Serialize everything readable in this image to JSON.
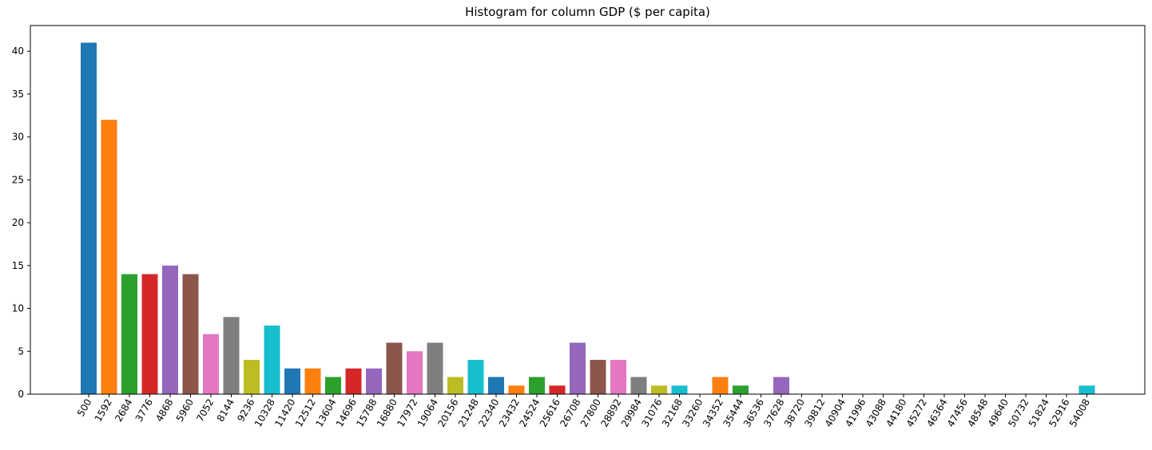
{
  "chart_data": {
    "type": "bar",
    "title": "Histogram for column GDP ($ per capita)",
    "xlabel": "",
    "ylabel": "",
    "ylim": [
      0,
      43
    ],
    "yticks": [
      0,
      5,
      10,
      15,
      20,
      25,
      30,
      35,
      40
    ],
    "grid": false,
    "categories": [
      "500",
      "1592",
      "2684",
      "3776",
      "4868",
      "5960",
      "7052",
      "8144",
      "9236",
      "10328",
      "11420",
      "12512",
      "13604",
      "14696",
      "15788",
      "16880",
      "17972",
      "19064",
      "20156",
      "21248",
      "22340",
      "23432",
      "24524",
      "25616",
      "26708",
      "27800",
      "28892",
      "29984",
      "31076",
      "32168",
      "33260",
      "34352",
      "35444",
      "36536",
      "37628",
      "38720",
      "39812",
      "40904",
      "41996",
      "43088",
      "44180",
      "45272",
      "46364",
      "47456",
      "48548",
      "49640",
      "50732",
      "51824",
      "52916",
      "54008"
    ],
    "values": [
      41,
      32,
      14,
      14,
      15,
      14,
      7,
      9,
      4,
      8,
      3,
      3,
      2,
      3,
      3,
      6,
      5,
      6,
      2,
      4,
      2,
      1,
      2,
      1,
      6,
      4,
      4,
      2,
      1,
      1,
      0,
      2,
      1,
      0,
      2,
      0,
      0,
      0,
      0,
      0,
      0,
      0,
      0,
      0,
      0,
      0,
      0,
      0,
      0,
      1
    ],
    "colors": [
      "#1f77b4",
      "#ff7f0e",
      "#2ca02c",
      "#d62728",
      "#9467bd",
      "#8c564b",
      "#e377c2",
      "#7f7f7f",
      "#bcbd22",
      "#17becf"
    ]
  }
}
